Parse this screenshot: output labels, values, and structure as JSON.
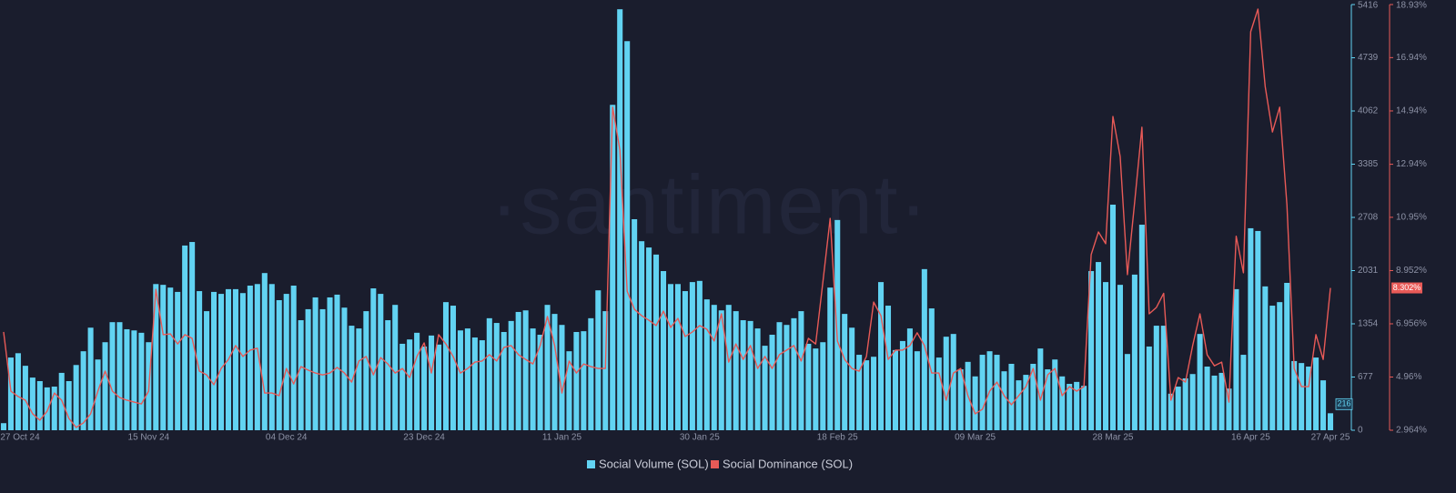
{
  "chart_data": {
    "type": "bar-line",
    "watermark": "·santiment·",
    "categories": [
      null,
      "27 Oct 24",
      null,
      null,
      null,
      null,
      null,
      null,
      null,
      null,
      null,
      null,
      null,
      null,
      null,
      null,
      null,
      null,
      null,
      null,
      "15 Nov 24",
      null,
      null,
      null,
      null,
      null,
      null,
      null,
      null,
      null,
      null,
      null,
      null,
      null,
      null,
      null,
      null,
      null,
      null,
      "04 Dec 24",
      null,
      null,
      null,
      null,
      null,
      null,
      null,
      null,
      null,
      null,
      null,
      null,
      null,
      null,
      null,
      null,
      null,
      null,
      "23 Dec 24",
      null,
      null,
      null,
      null,
      null,
      null,
      null,
      null,
      null,
      null,
      null,
      null,
      null,
      null,
      null,
      null,
      null,
      null,
      "11 Jan 25",
      null,
      null,
      null,
      null,
      null,
      null,
      null,
      null,
      null,
      null,
      null,
      null,
      null,
      null,
      null,
      null,
      null,
      null,
      "30 Jan 25",
      null,
      null,
      null,
      null,
      null,
      null,
      null,
      null,
      null,
      null,
      null,
      null,
      null,
      null,
      null,
      null,
      null,
      null,
      "18 Feb 25",
      null,
      null,
      null,
      null,
      null,
      null,
      null,
      null,
      null,
      null,
      null,
      null,
      null,
      null,
      null,
      null,
      null,
      null,
      "09 Mar 25",
      null,
      null,
      null,
      null,
      null,
      null,
      null,
      null,
      null,
      null,
      null,
      null,
      null,
      null,
      null,
      null,
      null,
      null,
      "28 Mar 25",
      null,
      null,
      null,
      null,
      null,
      null,
      null,
      null,
      null,
      null,
      null,
      null,
      null,
      null,
      null,
      null,
      null,
      null,
      "16 Apr 25",
      null,
      null,
      null,
      null,
      null,
      null,
      null,
      null,
      null,
      null,
      "27 Apr 25"
    ],
    "series": [
      {
        "name": "Social Volume (SOL)",
        "color": "#62d3f2",
        "axis": "y",
        "values": [
          90,
          925,
          980,
          820,
          670,
          625,
          545,
          555,
          730,
          625,
          830,
          1005,
          1305,
          900,
          1120,
          1375,
          1375,
          1285,
          1270,
          1240,
          1120,
          1860,
          1850,
          1815,
          1760,
          2350,
          2395,
          1770,
          1515,
          1760,
          1735,
          1795,
          1795,
          1745,
          1840,
          1860,
          2000,
          1860,
          1655,
          1735,
          1840,
          1400,
          1540,
          1690,
          1540,
          1690,
          1725,
          1560,
          1330,
          1295,
          1515,
          1805,
          1735,
          1400,
          1595,
          1100,
          1155,
          1240,
          1065,
          1205,
          1090,
          1630,
          1585,
          1270,
          1295,
          1180,
          1145,
          1425,
          1365,
          1250,
          1390,
          1505,
          1525,
          1295,
          1215,
          1595,
          1480,
          1340,
          1005,
          1250,
          1260,
          1425,
          1780,
          1515,
          4140,
          5356,
          4950,
          2685,
          2405,
          2325,
          2235,
          2025,
          1860,
          1860,
          1770,
          1885,
          1900,
          1665,
          1595,
          1525,
          1595,
          1515,
          1400,
          1390,
          1295,
          1075,
          1215,
          1375,
          1340,
          1425,
          1515,
          1100,
          1040,
          1120,
          1815,
          2675,
          1480,
          1305,
          960,
          890,
          935,
          1885,
          1585,
          1020,
          1135,
          1295,
          1005,
          2050,
          1550,
          925,
          1190,
          1225,
          775,
          870,
          685,
          960,
          1005,
          960,
          750,
          845,
          635,
          705,
          845,
          1040,
          775,
          900,
          685,
          590,
          615,
          565,
          2025,
          2140,
          1885,
          2870,
          1850,
          970,
          1980,
          2615,
          1065,
          1330,
          1330,
          465,
          555,
          660,
          715,
          1225,
          810,
          695,
          730,
          530,
          1795,
          960,
          2570,
          2535,
          1830,
          1585,
          1630,
          1875,
          880,
          855,
          810,
          925,
          635,
          216
        ]
      },
      {
        "name": "Social Dominance (SOL)",
        "color": "#e85a57",
        "axis": "y2",
        "last_value_label": "8.302%",
        "values": [
          6.65,
          4.43,
          4.23,
          4.09,
          3.58,
          3.34,
          3.68,
          4.36,
          4.09,
          3.41,
          3.07,
          3.24,
          3.58,
          4.43,
          5.18,
          4.43,
          4.19,
          4.09,
          4.02,
          3.95,
          4.43,
          8.25,
          6.55,
          6.58,
          6.2,
          6.55,
          6.41,
          5.18,
          5.04,
          4.67,
          5.28,
          5.62,
          6.14,
          5.73,
          5.97,
          6.04,
          4.36,
          4.36,
          4.26,
          5.28,
          4.7,
          5.35,
          5.22,
          5.11,
          5.04,
          5.11,
          5.32,
          5.11,
          4.77,
          5.56,
          5.73,
          5.04,
          5.69,
          5.45,
          5.11,
          5.28,
          4.94,
          5.73,
          6.24,
          5.11,
          6.55,
          6.2,
          5.73,
          5.11,
          5.28,
          5.52,
          5.56,
          5.8,
          5.56,
          6.07,
          6.14,
          5.8,
          5.62,
          5.45,
          6.14,
          7.23,
          6.14,
          4.36,
          5.56,
          5.11,
          5.45,
          5.35,
          5.28,
          5.28,
          15.08,
          13.47,
          8.18,
          7.5,
          7.26,
          7.09,
          6.89,
          7.43,
          6.82,
          7.16,
          6.48,
          6.65,
          6.89,
          6.75,
          6.31,
          7.33,
          5.52,
          6.2,
          5.62,
          6.14,
          5.28,
          5.73,
          5.28,
          5.8,
          5.97,
          6.14,
          5.56,
          6.41,
          6.2,
          8.53,
          10.91,
          6.31,
          5.62,
          5.28,
          5.18,
          5.73,
          7.77,
          7.26,
          5.62,
          5.97,
          5.97,
          6.14,
          6.62,
          6.14,
          5.11,
          5.11,
          4.09,
          5.11,
          5.28,
          4.26,
          3.58,
          3.75,
          4.43,
          4.77,
          4.26,
          3.92,
          4.26,
          4.6,
          5.28,
          4.09,
          5.04,
          5.28,
          4.26,
          4.6,
          4.43,
          4.6,
          9.55,
          10.4,
          9.96,
          14.73,
          13.23,
          8.8,
          11.53,
          14.33,
          7.33,
          7.57,
          8.1,
          4.09,
          4.94,
          4.77,
          6.14,
          7.33,
          5.79,
          5.38,
          5.52,
          4.02,
          10.24,
          8.87,
          17.91,
          18.76,
          15.86,
          14.15,
          15.08,
          11.42,
          5.28,
          4.6,
          4.6,
          6.55,
          5.62,
          8.302
        ]
      }
    ],
    "ylim": [
      0,
      5416
    ],
    "yticks": [
      0,
      677,
      1354,
      2031,
      2708,
      3385,
      4062,
      4739,
      5416
    ],
    "y2lim": [
      2.964,
      18.93
    ],
    "y2ticks": [
      {
        "value": 2.964,
        "label": "2.964%"
      },
      {
        "value": 4.96,
        "label": "4.96%"
      },
      {
        "value": 6.956,
        "label": "6.956%"
      },
      {
        "value": 8.952,
        "label": "8.952%"
      },
      {
        "value": 10.95,
        "label": "10.95%"
      },
      {
        "value": 12.94,
        "label": "12.94%"
      },
      {
        "value": 14.94,
        "label": "14.94%"
      },
      {
        "value": 16.94,
        "label": "16.94%"
      },
      {
        "value": 18.93,
        "label": "18.93%"
      }
    ],
    "grid": false,
    "legend": "bottom"
  }
}
